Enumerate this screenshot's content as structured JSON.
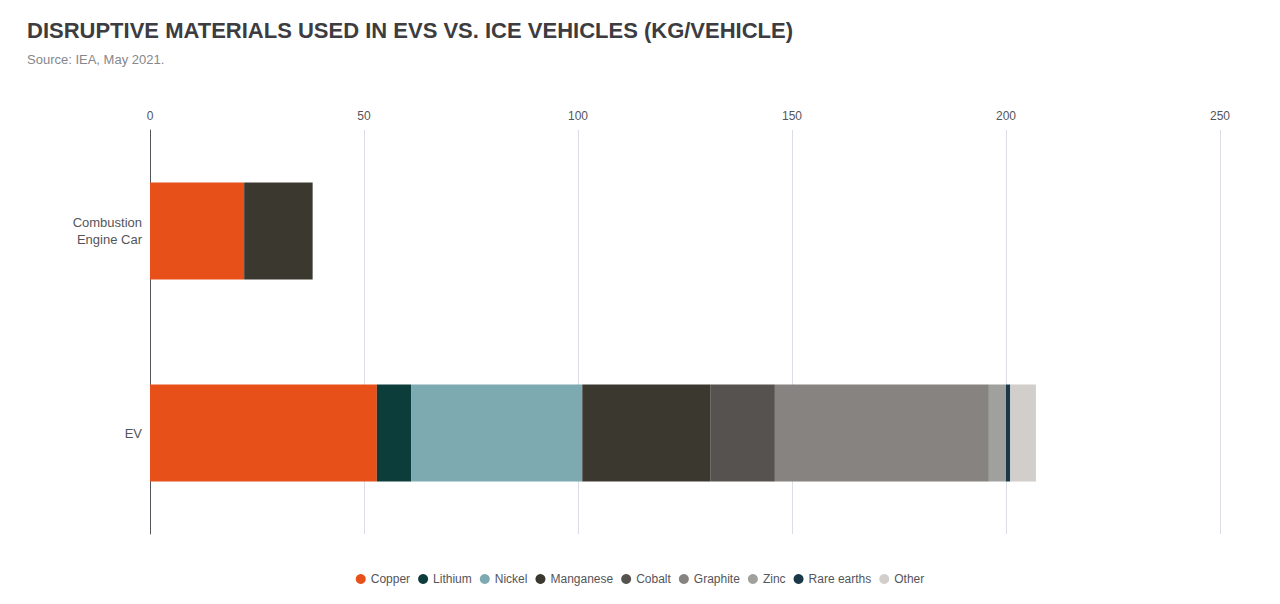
{
  "chart_data": {
    "type": "bar",
    "title": "DISRUPTIVE MATERIALS USED IN EVS VS. ICE VEHICLES (KG/VEHICLE)",
    "subtitle": "Source: IEA, May 2021.",
    "orientation": "horizontal",
    "stacked": true,
    "categories": [
      "Combustion\nEngine Car",
      "EV"
    ],
    "series": [
      {
        "name": "Copper",
        "color": "#e8501a",
        "values": [
          22,
          53
        ]
      },
      {
        "name": "Lithium",
        "color": "#0d3d3b",
        "values": [
          0,
          8
        ]
      },
      {
        "name": "Nickel",
        "color": "#7daab0",
        "values": [
          0,
          40
        ]
      },
      {
        "name": "Manganese",
        "color": "#3b3830",
        "values": [
          16,
          30
        ]
      },
      {
        "name": "Cobalt",
        "color": "#565250",
        "values": [
          0,
          15
        ]
      },
      {
        "name": "Graphite",
        "color": "#878380",
        "values": [
          0,
          50
        ]
      },
      {
        "name": "Zinc",
        "color": "#a0a09c",
        "values": [
          0,
          4
        ]
      },
      {
        "name": "Rare earths",
        "color": "#1a3848",
        "values": [
          0,
          1
        ]
      },
      {
        "name": "Other",
        "color": "#d2cecc",
        "values": [
          0,
          6
        ]
      }
    ],
    "xlim": [
      0,
      250
    ],
    "xticks": [
      0,
      50,
      100,
      150,
      200,
      250
    ],
    "grid": true,
    "legend": "bottom"
  }
}
